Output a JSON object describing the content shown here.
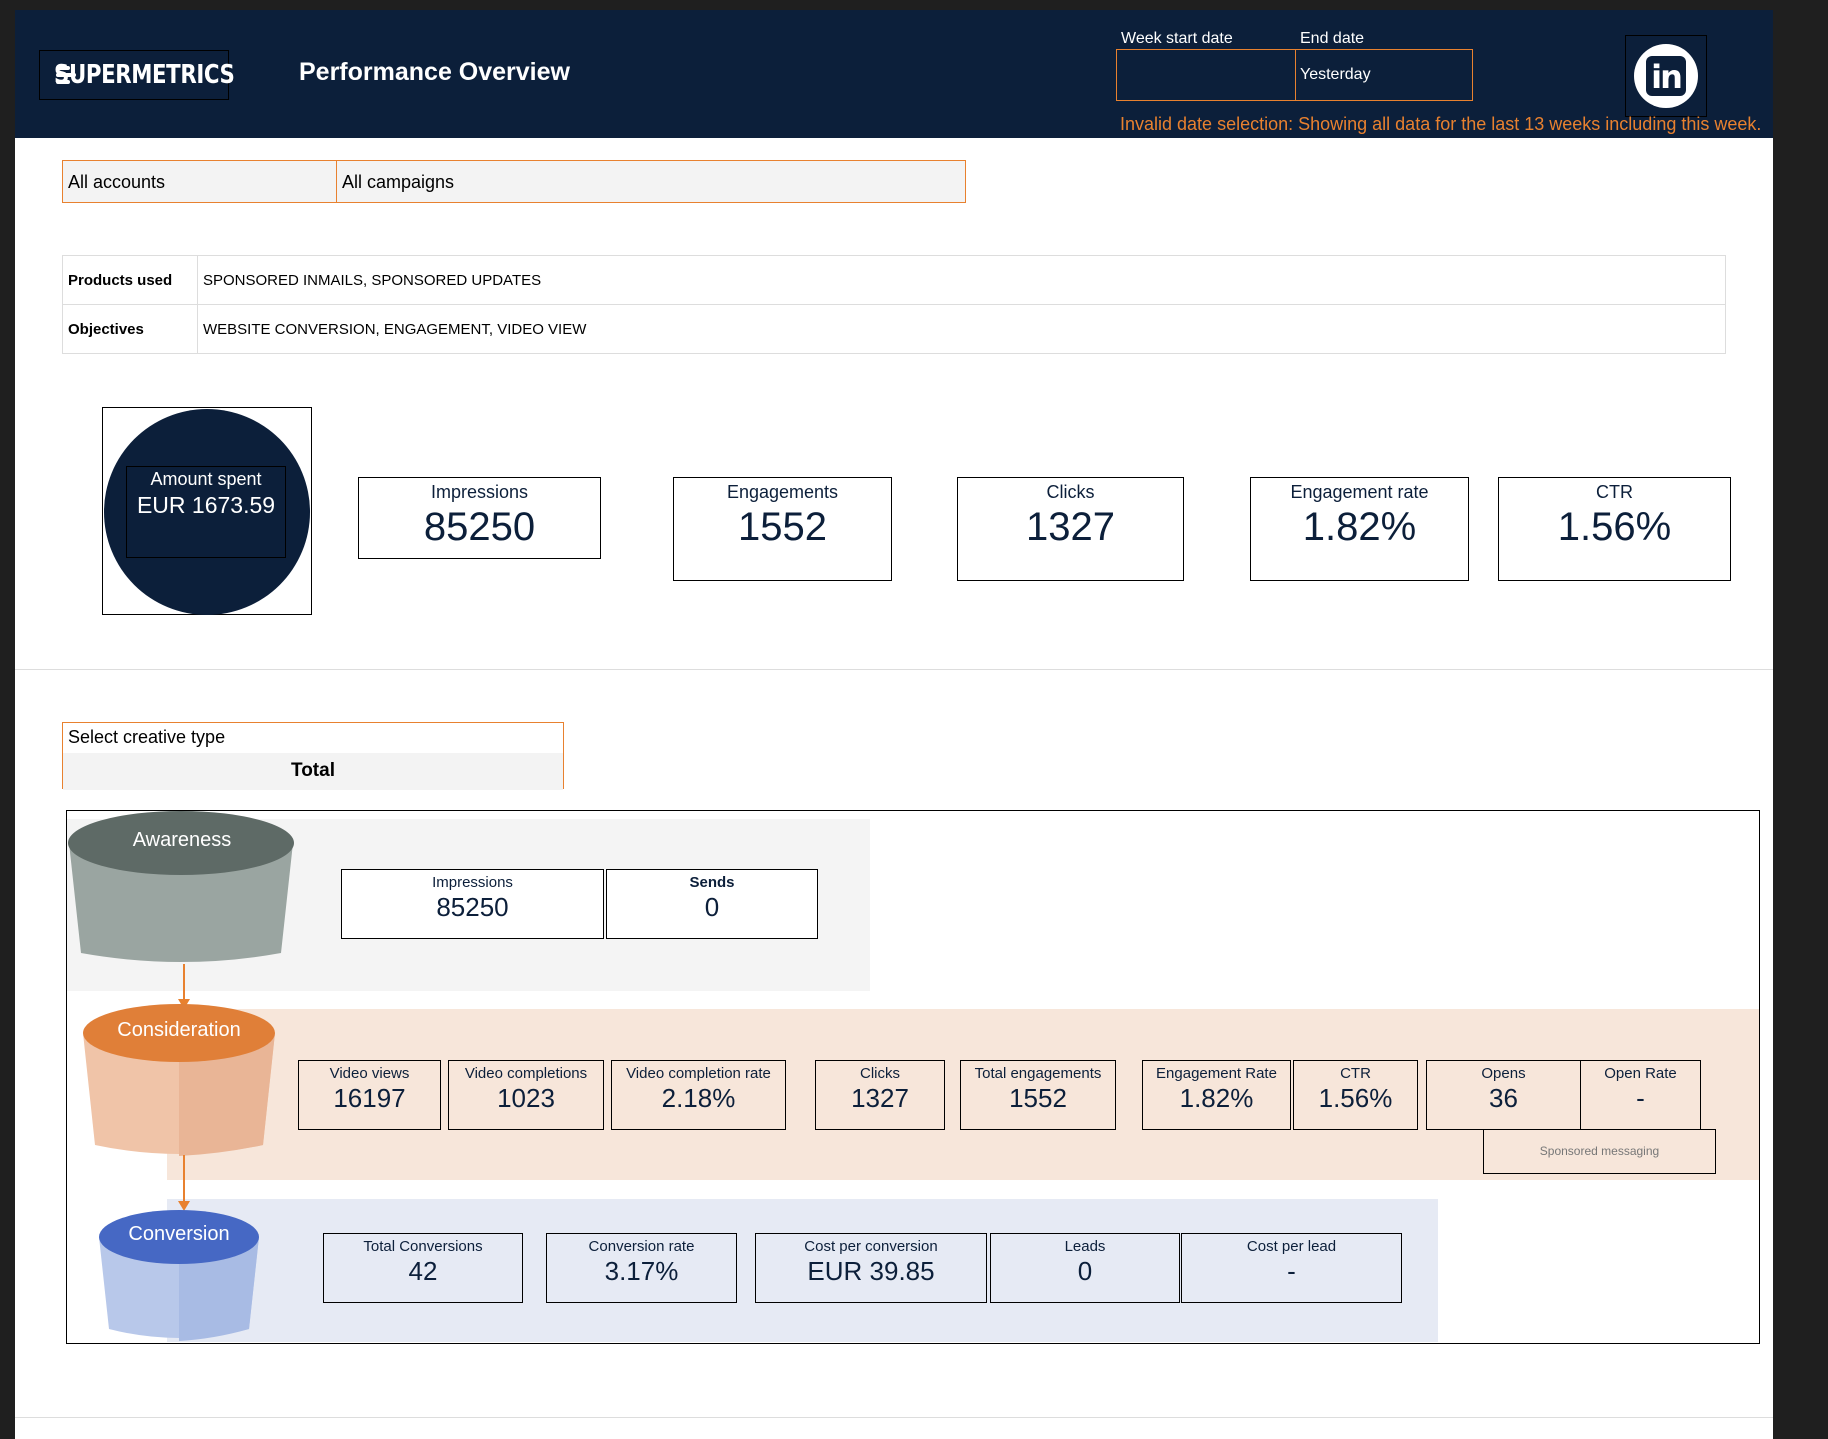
{
  "header": {
    "logo_text": "SUPERMETRICS",
    "title": "Performance Overview",
    "week_start_label": "Week start date",
    "week_start_value": "",
    "end_date_label": "End date",
    "end_date_value": "Yesterday",
    "warning": "Invalid date selection: Showing all data for the last 13 weeks including this week."
  },
  "filters": {
    "accounts": "All accounts",
    "campaigns": "All campaigns"
  },
  "info": {
    "products_label": "Products used",
    "products_value": "SPONSORED INMAILS, SPONSORED UPDATES",
    "objectives_label": "Objectives",
    "objectives_value": "WEBSITE CONVERSION, ENGAGEMENT, VIDEO VIEW"
  },
  "kpis": {
    "amount_label": "Amount spent",
    "amount_value": "EUR 1673.59",
    "impressions_label": "Impressions",
    "impressions_value": "85250",
    "engagements_label": "Engagements",
    "engagements_value": "1552",
    "clicks_label": "Clicks",
    "clicks_value": "1327",
    "engagement_rate_label": "Engagement rate",
    "engagement_rate_value": "1.82%",
    "ctr_label": "CTR",
    "ctr_value": "1.56%"
  },
  "creative": {
    "label": "Select creative type",
    "value": "Total"
  },
  "funnel": {
    "awareness": {
      "label": "Awareness",
      "metrics": [
        {
          "label": "Impressions",
          "value": "85250"
        },
        {
          "label": "Sends",
          "value": "0"
        }
      ]
    },
    "consideration": {
      "label": "Consideration",
      "metrics": [
        {
          "label": "Video views",
          "value": "16197"
        },
        {
          "label": "Video completions",
          "value": "1023"
        },
        {
          "label": "Video completion rate",
          "value": "2.18%"
        },
        {
          "label": "Clicks",
          "value": "1327"
        },
        {
          "label": "Total engagements",
          "value": "1552"
        },
        {
          "label": "Engagement Rate",
          "value": "1.82%"
        },
        {
          "label": "CTR",
          "value": "1.56%"
        },
        {
          "label": "Opens",
          "value": "36"
        },
        {
          "label": "Open Rate",
          "value": "-"
        }
      ],
      "note": "Sponsored messaging"
    },
    "conversion": {
      "label": "Conversion",
      "metrics": [
        {
          "label": "Total Conversions",
          "value": "42"
        },
        {
          "label": "Conversion rate",
          "value": "3.17%"
        },
        {
          "label": "Cost per conversion",
          "value": "EUR 39.85"
        },
        {
          "label": "Leads",
          "value": "0"
        },
        {
          "label": "Cost per lead",
          "value": "-"
        }
      ]
    }
  },
  "colors": {
    "navy": "#0c1f3a",
    "accent_orange": "#e8812f",
    "awareness_band": "#f4f4f4",
    "consideration_band": "#f7e6da",
    "conversion_band": "#e6eaf4"
  }
}
